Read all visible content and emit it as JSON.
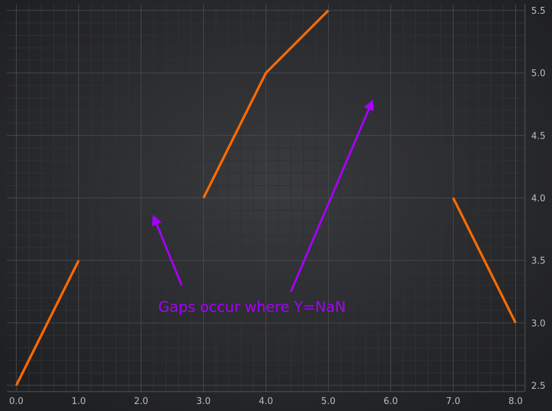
{
  "chart_data": {
    "type": "line",
    "title": "",
    "xlabel": "",
    "ylabel": "",
    "xlim": [
      -0.15,
      8.15
    ],
    "ylim": [
      2.45,
      5.55
    ],
    "x_ticks": [
      0.0,
      1.0,
      2.0,
      3.0,
      4.0,
      5.0,
      6.0,
      7.0,
      8.0
    ],
    "y_ticks": [
      2.5,
      3.0,
      3.5,
      4.0,
      4.5,
      5.0,
      5.5
    ],
    "x_tick_labels": [
      "0.0",
      "1.0",
      "2.0",
      "3.0",
      "4.0",
      "5.0",
      "6.0",
      "7.0",
      "8.0"
    ],
    "y_tick_labels": [
      "2.5",
      "3.0",
      "3.5",
      "4.0",
      "4.5",
      "5.0",
      "5.5"
    ],
    "y_axis_position": "right",
    "grid": true,
    "series": [
      {
        "color": "#ff6a00",
        "points": [
          {
            "x": 0,
            "y": 2.5
          },
          {
            "x": 1,
            "y": 3.5
          },
          {
            "x": 2,
            "y": null
          },
          {
            "x": 3,
            "y": 4.0
          },
          {
            "x": 4,
            "y": 5.0
          },
          {
            "x": 5,
            "y": 5.5
          },
          {
            "x": 6,
            "y": null
          },
          {
            "x": 7,
            "y": 4.0
          },
          {
            "x": 8,
            "y": 3.0
          }
        ]
      }
    ],
    "annotations": [
      {
        "text": "Gaps occur where Y=NaN",
        "color": "#a700ff",
        "text_x": 4.4,
        "text_y": 3.1,
        "arrows": [
          {
            "from_x": 2.65,
            "from_y": 3.3,
            "to_x": 2.2,
            "to_y": 3.85
          },
          {
            "from_x": 4.4,
            "from_y": 3.25,
            "to_x": 5.7,
            "to_y": 4.77
          }
        ]
      }
    ]
  },
  "colors": {
    "background_edge": "#1f2023",
    "background_center": "#3a3b3e",
    "grid_major": "#46484c",
    "grid_minor": "#2f3134",
    "axis_text": "#b9bcc2"
  }
}
